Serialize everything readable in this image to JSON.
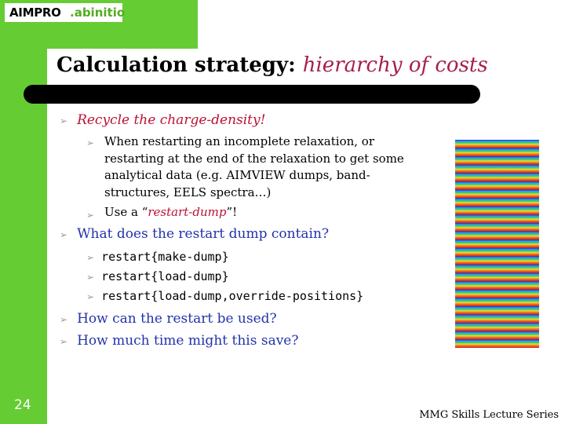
{
  "logo": {
    "part1": "AIMPRO",
    "part2": ".abinitio"
  },
  "title": {
    "main": "Calculation strategy: ",
    "highlight": "hierarchy of costs"
  },
  "bullets": {
    "b1": "Recycle the charge-density!",
    "b1_sub1_lines": [
      "When restarting an incomplete relaxation, or",
      "restarting at the end of the relaxation to get some",
      "analytical data (e.g. AIMVIEW dumps, band-",
      "structures, EELS spectra…)"
    ],
    "b1_sub2_pre": "Use a “",
    "b1_sub2_link": "restart-dump",
    "b1_sub2_post": "”!",
    "b2": "What does the restart dump contain?",
    "b2_subs": [
      "restart{make-dump}",
      "restart{load-dump}",
      "restart{load-dump,override-positions}"
    ],
    "b3": "How can the restart be used?",
    "b4": "How much time might this save?"
  },
  "page_number": "24",
  "footer": "MMG Skills Lecture Series",
  "colors": {
    "green": "#66cc33",
    "blue_text": "#2233aa",
    "highlight": "#a52050",
    "red_italic": "#bb1133"
  }
}
